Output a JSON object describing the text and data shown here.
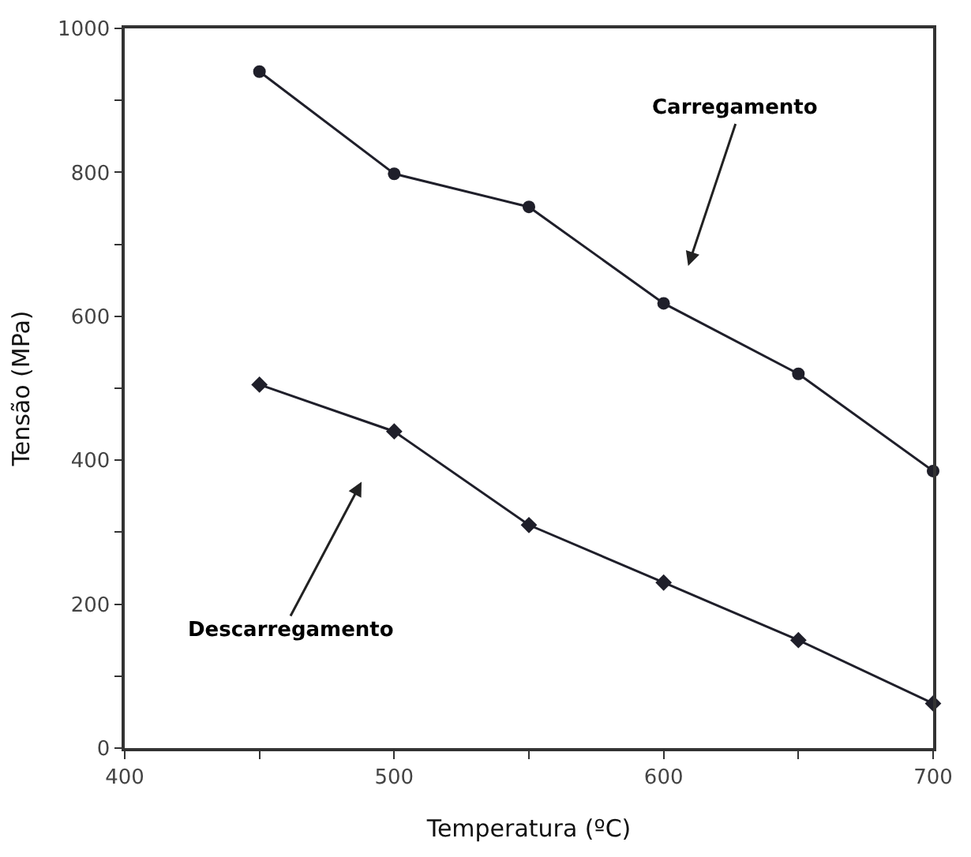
{
  "chart_data": {
    "type": "line",
    "xlabel": "Temperatura (ºC)",
    "ylabel": "Tensão (MPa)",
    "x": [
      450,
      500,
      550,
      600,
      650,
      700
    ],
    "series": [
      {
        "color": "#1f1f2a",
        "marker": "circle",
        "values": [
          940,
          798,
          752,
          618,
          520,
          385
        ]
      },
      {
        "color": "#1f1f2a",
        "marker": "diamond",
        "values": [
          505,
          440,
          310,
          230,
          150,
          62
        ]
      }
    ],
    "xlim": [
      400,
      700
    ],
    "ylim": [
      0,
      1000
    ],
    "xticks": [
      400,
      {
        "value": 450,
        "label": null
      },
      500,
      {
        "value": 550,
        "label": null
      },
      600,
      {
        "value": 650,
        "label": null
      },
      700
    ],
    "yticks": [
      0,
      {
        "value": 100,
        "label": null
      },
      200,
      {
        "value": 300,
        "label": null
      },
      400,
      {
        "value": 500,
        "label": null
      },
      600,
      {
        "value": 700,
        "label": null
      },
      800,
      {
        "value": 900,
        "label": null
      },
      1000
    ],
    "annotations": [
      "Carregamento",
      "Descarregamento"
    ],
    "grid": false,
    "legend": false,
    "line_style": "solid"
  }
}
